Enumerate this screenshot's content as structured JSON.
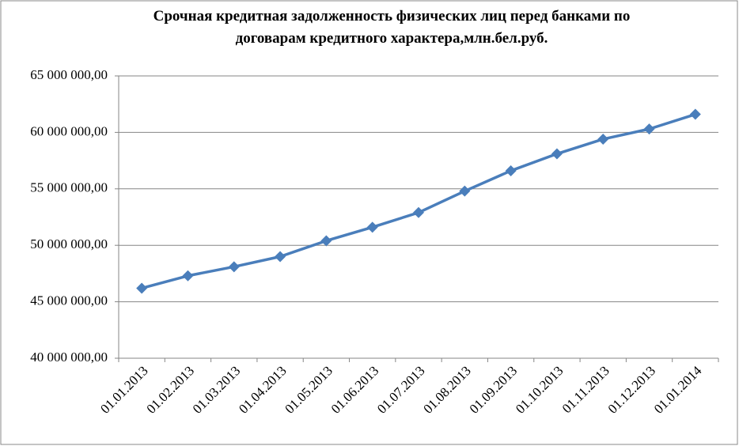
{
  "chart_data": {
    "type": "line",
    "title": [
      "Срочная кредитная задолженность физических лиц перед банками по",
      "договарам кредитного характера,млн.бел.руб."
    ],
    "categories": [
      "01.01.2013",
      "01.02.2013",
      "01.03.2013",
      "01.04.2013",
      "01.05.2013",
      "01.06.2013",
      "01.07.2013",
      "01.08.2013",
      "01.09.2013",
      "01.10.2013",
      "01.11.2013",
      "01.12.2013",
      "01.01.2014"
    ],
    "series": [
      {
        "color": "#4a7ebb",
        "values": [
          46200000,
          47300000,
          48100000,
          49000000,
          50400000,
          51600000,
          52900000,
          54800000,
          56600000,
          58100000,
          59400000,
          60300000,
          61600000
        ]
      }
    ],
    "ylim": [
      40000000,
      65000000
    ],
    "yticks": [
      {
        "value": 40000000,
        "label": "40 000 000,00"
      },
      {
        "value": 45000000,
        "label": "45 000 000,00"
      },
      {
        "value": 50000000,
        "label": "50 000 000,00"
      },
      {
        "value": 55000000,
        "label": "55 000 000,00"
      },
      {
        "value": 60000000,
        "label": "60 000 000,00"
      },
      {
        "value": 65000000,
        "label": "65 000 000,00"
      }
    ],
    "grid": true
  }
}
